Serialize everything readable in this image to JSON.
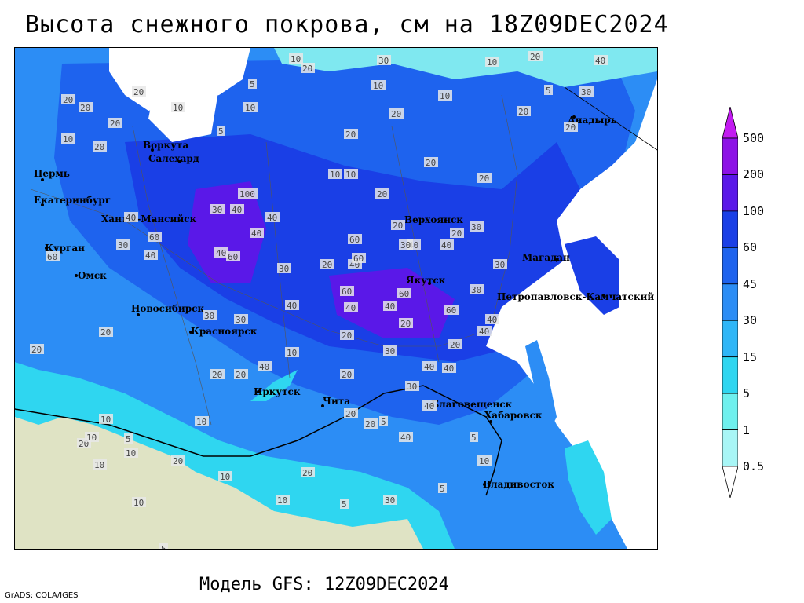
{
  "title": "Высота снежного покрова, см на 18Z09DEC2024",
  "footer": "Модель GFS: 12Z09DEC2024",
  "credit": "GrADS: COLA/IGES",
  "legend": {
    "levels": [
      "500",
      "200",
      "100",
      "60",
      "45",
      "30",
      "15",
      "5",
      "1",
      "0.5"
    ],
    "colors": [
      "#c21bf0",
      "#8d12e6",
      "#5a18e8",
      "#1a3fe6",
      "#1e63ee",
      "#2c8df5",
      "#2fb6f7",
      "#2fd6f0",
      "#6ff0ee",
      "#a8f6f6",
      "#ffffff"
    ]
  },
  "cities": [
    {
      "name": "Анадырь"
    },
    {
      "name": "Воркута"
    },
    {
      "name": "Салехард"
    },
    {
      "name": "Пермь"
    },
    {
      "name": "Екатеринбург"
    },
    {
      "name": "Ханты-Мансийск"
    },
    {
      "name": "Курган"
    },
    {
      "name": "Омск"
    },
    {
      "name": "Новосибирск"
    },
    {
      "name": "Красноярск"
    },
    {
      "name": "Иркутск"
    },
    {
      "name": "Чита"
    },
    {
      "name": "Верхоянск"
    },
    {
      "name": "Якутск"
    },
    {
      "name": "Магадан"
    },
    {
      "name": "Петропавловск-Камчатский"
    },
    {
      "name": "Благовещенск"
    },
    {
      "name": "Хабаровск"
    },
    {
      "name": "Владивосток"
    }
  ],
  "contour_labels": [
    "10",
    "20",
    "30",
    "5",
    "10",
    "5",
    "10",
    "20",
    "10",
    "5",
    "10",
    "20",
    "20",
    "20",
    "10",
    "20",
    "10",
    "20",
    "20",
    "20",
    "10",
    "20",
    "20",
    "20",
    "20",
    "30",
    "40",
    "10",
    "30",
    "40",
    "20",
    "60",
    "60",
    "100",
    "40",
    "40",
    "20",
    "60",
    "40",
    "40",
    "20",
    "40",
    "30",
    "30",
    "60",
    "40",
    "60",
    "30",
    "40",
    "40",
    "30",
    "20",
    "30",
    "60",
    "60",
    "40",
    "40",
    "30",
    "40",
    "60",
    "40",
    "20",
    "20",
    "20",
    "30",
    "20",
    "30",
    "40",
    "30",
    "40",
    "40",
    "20",
    "20",
    "40",
    "20",
    "10",
    "10",
    "20",
    "20",
    "5",
    "10",
    "5",
    "10",
    "10",
    "20",
    "40",
    "30",
    "20",
    "30",
    "10",
    "5",
    "5",
    "10",
    "5",
    "20",
    "10",
    "40",
    "10",
    "20",
    "10",
    "5"
  ]
}
